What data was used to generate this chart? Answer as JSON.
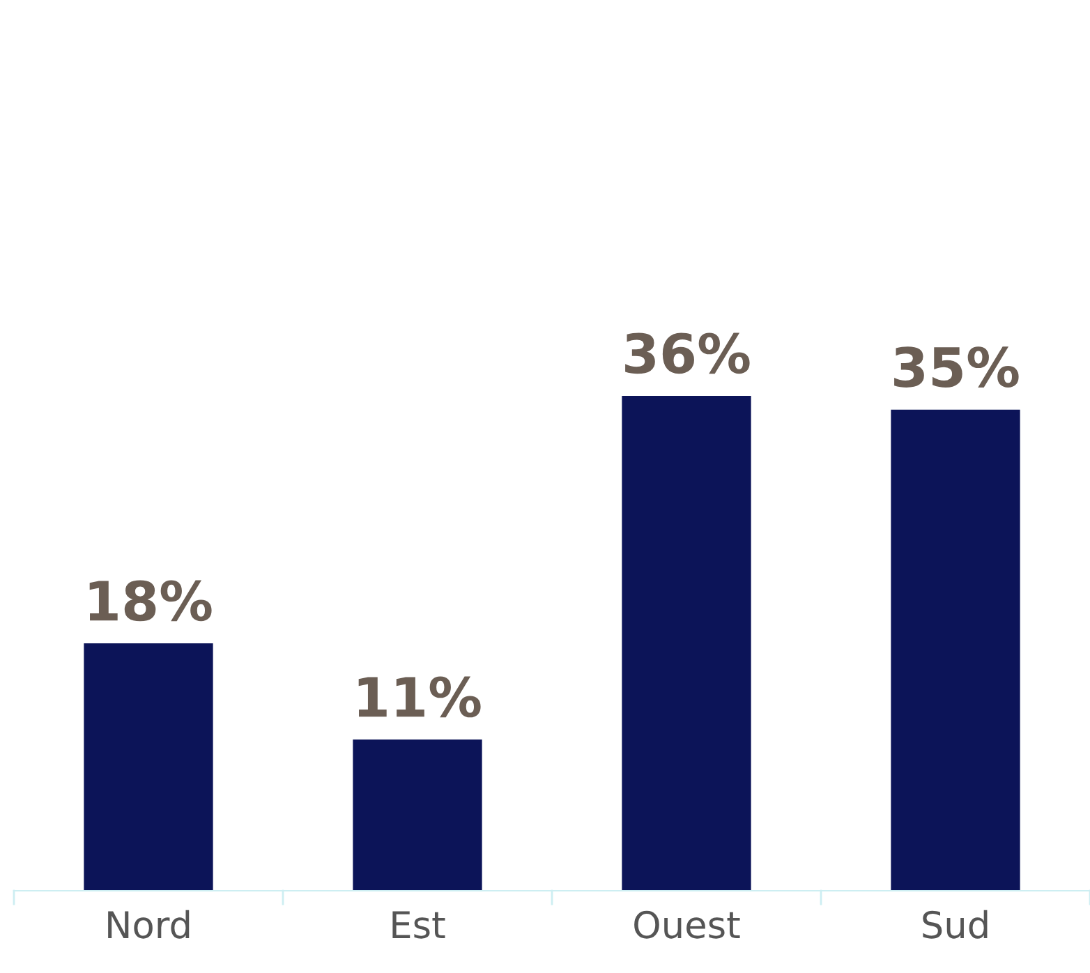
{
  "chart_data": {
    "type": "bar",
    "categories": [
      "Nord",
      "Est",
      "Ouest",
      "Sud"
    ],
    "values": [
      18,
      11,
      36,
      35
    ],
    "value_labels": [
      "18%",
      "11%",
      "36%",
      "35%"
    ],
    "color": "#0c1458",
    "grid": false,
    "legend": false
  }
}
